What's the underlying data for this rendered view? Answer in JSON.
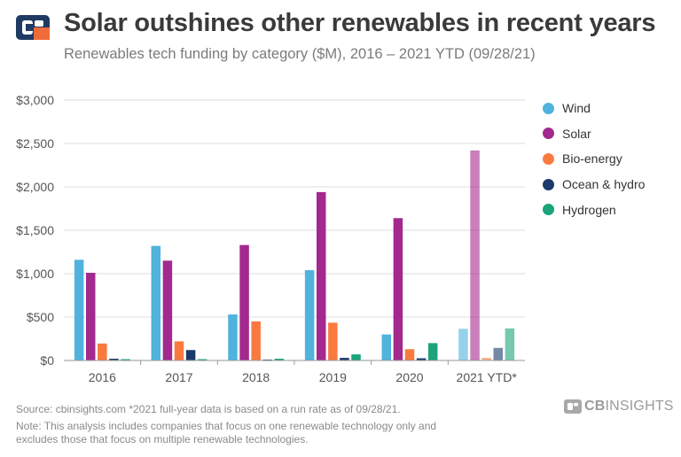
{
  "header": {
    "title": "Solar outshines other renewables in recent years",
    "subtitle": "Renewables tech funding by category ($M), 2016 – 2021 YTD (09/28/21)"
  },
  "footer": {
    "source": "Source: cbinsights.com  *2021 full-year data is based on a run rate as of 09/28/21.",
    "note_line1": "Note: This analysis includes companies that focus on one renewable technology only and",
    "note_line2": "excludes those that focus on multiple renewable technologies.",
    "brand_bold": "CB",
    "brand_rest": "INSIGHTS"
  },
  "colors": {
    "title": "#3a3a3a",
    "grid": "#dcdcdc",
    "axis_text": "#555555",
    "logo_navy": "#1f3a63",
    "logo_orange": "#ef6b3a"
  },
  "chart_data": {
    "type": "bar",
    "title": "Solar outshines other renewables in recent years",
    "subtitle": "Renewables tech funding by category ($M), 2016 – 2021 YTD (09/28/21)",
    "xlabel": "",
    "ylabel": "",
    "ylim": [
      0,
      3000
    ],
    "yticks": [
      0,
      500,
      1000,
      1500,
      2000,
      2500,
      3000
    ],
    "ytick_labels": [
      "$0",
      "$500",
      "$1,000",
      "$1,500",
      "$2,000",
      "$2,500",
      "$3,000"
    ],
    "grid": true,
    "legend_position": "right",
    "categories": [
      "2016",
      "2017",
      "2018",
      "2019",
      "2020",
      "2021 YTD*"
    ],
    "series": [
      {
        "name": "Wind",
        "color": "#4fb3de",
        "values": [
          1160,
          1320,
          530,
          1040,
          300,
          365
        ]
      },
      {
        "name": "Solar",
        "color": "#a3298e",
        "values": [
          1010,
          1150,
          1330,
          1940,
          1640,
          2420
        ]
      },
      {
        "name": "Bio-energy",
        "color": "#f97a3f",
        "values": [
          195,
          220,
          450,
          435,
          130,
          30
        ]
      },
      {
        "name": "Ocean & hydro",
        "color": "#1b3a6b",
        "values": [
          20,
          120,
          10,
          30,
          25,
          145
        ]
      },
      {
        "name": "Hydrogen",
        "color": "#1ba37a",
        "values": [
          15,
          15,
          20,
          70,
          200,
          370
        ]
      }
    ],
    "faded_category": "2021 YTD*"
  }
}
